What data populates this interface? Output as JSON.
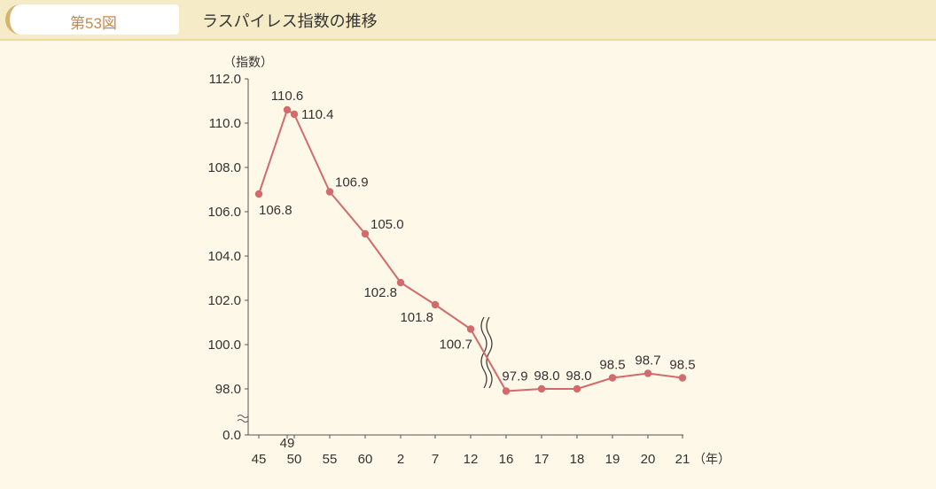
{
  "header": {
    "figure_label": "第53図",
    "title": "ラスパイレス指数の推移"
  },
  "colors": {
    "series": "#d26b6b",
    "header_bg": "#f5ebc6",
    "label_accent": "#c7894d",
    "page_bg": "#fdf8e8"
  },
  "chart_data": {
    "type": "line",
    "title": "ラスパイレス指数の推移",
    "y_unit_label": "（指数）",
    "x_unit_label": "（年）",
    "y_ticks": [
      "112.0",
      "110.0",
      "108.0",
      "106.0",
      "104.0",
      "102.0",
      "100.0",
      "98.0",
      "0.0"
    ],
    "ylim": [
      98.0,
      112.0
    ],
    "y_axis_broken": true,
    "x_axis_broken_between": [
      "12",
      "16"
    ],
    "x_categories": [
      "45",
      "49",
      "50",
      "55",
      "60",
      "2",
      "7",
      "12",
      "16",
      "17",
      "18",
      "19",
      "20",
      "21"
    ],
    "values": [
      106.8,
      110.6,
      110.4,
      106.9,
      105.0,
      102.8,
      101.8,
      100.7,
      97.9,
      98.0,
      98.0,
      98.5,
      98.7,
      98.5
    ],
    "data_labels": [
      "106.8",
      "110.6",
      "110.4",
      "106.9",
      "105.0",
      "102.8",
      "101.8",
      "100.7",
      "97.9",
      "98.0",
      "98.0",
      "98.5",
      "98.7",
      "98.5"
    ],
    "grid": false,
    "legend": "none"
  }
}
